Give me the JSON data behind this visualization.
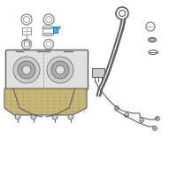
{
  "bg": "#ffffff",
  "lc": "#909090",
  "dc": "#606060",
  "hc": "#2288bb",
  "hcf": "#55aadd",
  "tan": "#c8b87a",
  "tan_dark": "#a09050",
  "gray_light": "#e0e0e0",
  "gray_mid": "#cccccc",
  "gray_dark": "#aaaaaa"
}
